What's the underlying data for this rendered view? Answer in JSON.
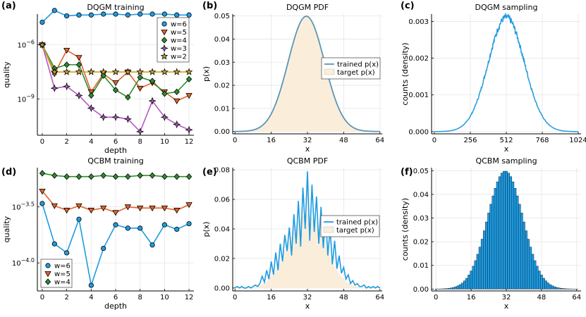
{
  "colors": {
    "w6": "#1f9be0",
    "w5": "#e0622a",
    "w4": "#2f8b2f",
    "w3": "#b45ac2",
    "w2": "#c9a227",
    "target": "#faeedb",
    "trained": "#1f9be0",
    "trainedA": "#5a96b8"
  },
  "chart_data": [
    {
      "id": "a",
      "type": "line",
      "panel_label": "(a)",
      "title": "DQGM training",
      "xlabel": "depth",
      "ylabel": "quality",
      "xlim": [
        -0.4,
        12.4
      ],
      "ylog": true,
      "ylim_exp": [
        -11.0,
        -4.3
      ],
      "x_ticks": [
        0,
        2,
        4,
        6,
        8,
        10,
        12
      ],
      "y_ticks": [
        {
          "exp": -6,
          "label": "10",
          "sup": "−6"
        },
        {
          "exp": -9,
          "label": "10",
          "sup": "−9"
        }
      ],
      "x": [
        0,
        1,
        2,
        3,
        4,
        5,
        6,
        7,
        8,
        9,
        10,
        11,
        12
      ],
      "series": [
        {
          "name": "w=6",
          "marker": "circle",
          "log10": [
            -4.75,
            -4.1,
            -4.4,
            -4.35,
            -4.35,
            -4.3,
            -4.3,
            -4.35,
            -4.3,
            -4.3,
            -4.3,
            -4.35,
            -4.35
          ]
        },
        {
          "name": "w=5",
          "marker": "tri-down",
          "log10": [
            -6.0,
            -7.6,
            -6.3,
            -6.7,
            -8.6,
            -7.6,
            -8.1,
            -7.5,
            -8.4,
            -8.1,
            -8.6,
            -9.1,
            -8.8
          ]
        },
        {
          "name": "w=4",
          "marker": "diamond",
          "log10": [
            -6.0,
            -7.3,
            -7.1,
            -7.1,
            -8.8,
            -7.7,
            -8.5,
            -8.9,
            -7.8,
            -8.0,
            -8.7,
            -8.6,
            -7.9
          ]
        },
        {
          "name": "w=3",
          "marker": "star4",
          "log10": [
            -6.0,
            -8.4,
            -8.3,
            -8.8,
            -9.5,
            -10.0,
            -10.0,
            -10.1,
            -10.8,
            -9.1,
            -10.0,
            -10.4,
            -10.7
          ]
        },
        {
          "name": "w=2",
          "marker": "star5",
          "log10": [
            -6.0,
            -7.5,
            -7.5,
            -7.5,
            -7.5,
            -7.5,
            -7.5,
            -7.5,
            -7.5,
            -7.5,
            -7.5,
            -7.5,
            -7.5
          ]
        }
      ],
      "legend": [
        "w=6",
        "w=5",
        "w=4",
        "w=3",
        "w=2"
      ]
    },
    {
      "id": "b",
      "type": "area",
      "panel_label": "(b)",
      "title": "DQGM PDF",
      "xlabel": "x",
      "ylabel": "p(x)",
      "xlim": [
        -1,
        65
      ],
      "ylim": [
        -0.001,
        0.0508
      ],
      "x_ticks": [
        0,
        16,
        32,
        48,
        64
      ],
      "y_ticks": [
        0.0,
        0.01,
        0.02,
        0.03,
        0.04,
        0.05
      ],
      "y_tick_labels": [
        "0.00",
        "0.01",
        "0.02",
        "0.03",
        "0.04",
        "0.05"
      ],
      "gaussian": {
        "mean": 31.5,
        "sd": 8.0,
        "x_range": [
          0,
          64
        ]
      },
      "legend": [
        "trained p(x)",
        "target p(x)"
      ]
    },
    {
      "id": "c",
      "type": "line",
      "panel_label": "(c)",
      "title": "DQGM sampling",
      "xlabel": "x",
      "ylabel": "counts (density)",
      "xlim": [
        -20,
        1044
      ],
      "ylim": [
        -6e-05,
        0.0032
      ],
      "x_ticks": [
        0,
        256,
        512,
        768,
        1024
      ],
      "y_ticks": [
        0.0,
        0.001,
        0.002,
        0.003
      ],
      "y_tick_labels": [
        "0.000",
        "0.001",
        "0.002",
        "0.003"
      ],
      "gaussian": {
        "mean": 512,
        "sd": 128,
        "x_range": [
          0,
          1024
        ]
      }
    },
    {
      "id": "d",
      "type": "line",
      "panel_label": "(d)",
      "title": "QCBM training",
      "xlabel": "depth",
      "ylabel": "quality",
      "xlim": [
        -0.4,
        12.4
      ],
      "ylog": true,
      "ylim_exp": [
        -4.25,
        -3.15
      ],
      "x_ticks": [
        0,
        2,
        4,
        6,
        8,
        10,
        12
      ],
      "y_ticks": [
        {
          "exp": -3.5,
          "label": "10",
          "sup": "−3.5"
        },
        {
          "exp": -4.0,
          "label": "10",
          "sup": "−4.0"
        }
      ],
      "x": [
        0,
        1,
        2,
        3,
        4,
        5,
        6,
        7,
        8,
        9,
        10,
        11,
        12
      ],
      "series": [
        {
          "name": "w=6",
          "marker": "circle",
          "log10": [
            -3.47,
            -3.83,
            -3.91,
            -3.61,
            -4.2,
            -3.87,
            -3.66,
            -3.69,
            -3.69,
            -3.84,
            -3.66,
            -3.7,
            -3.65
          ]
        },
        {
          "name": "w=5",
          "marker": "tri-down",
          "log10": [
            -3.36,
            -3.49,
            -3.53,
            -3.49,
            -3.53,
            -3.51,
            -3.55,
            -3.5,
            -3.51,
            -3.51,
            -3.51,
            -3.53,
            -3.48
          ]
        },
        {
          "name": "w=4",
          "marker": "diamond",
          "log10": [
            -3.2,
            -3.22,
            -3.23,
            -3.23,
            -3.23,
            -3.22,
            -3.23,
            -3.23,
            -3.22,
            -3.22,
            -3.23,
            -3.23,
            -3.23
          ]
        }
      ],
      "legend": [
        "w=6",
        "w=5",
        "w=4"
      ]
    },
    {
      "id": "e",
      "type": "area",
      "panel_label": "(e)",
      "title": "QCBM PDF",
      "xlabel": "x",
      "ylabel": "p(x)",
      "xlim": [
        -1,
        65
      ],
      "ylim": [
        -0.002,
        0.0815
      ],
      "x_ticks": [
        0,
        16,
        32,
        48,
        64
      ],
      "y_ticks": [
        0.0,
        0.02,
        0.04,
        0.06,
        0.08
      ],
      "y_tick_labels": [
        "0.00",
        "0.02",
        "0.04",
        "0.06",
        "0.08"
      ],
      "gaussian": {
        "mean": 31.5,
        "sd": 8.0,
        "x_range": [
          0,
          64
        ]
      },
      "trained_values": [
        0.0,
        0.001,
        0.0,
        0.001,
        0.0,
        0.0,
        0.001,
        0.0,
        0.001,
        0.002,
        0.001,
        0.003,
        0.008,
        0.004,
        0.012,
        0.006,
        0.018,
        0.009,
        0.024,
        0.012,
        0.03,
        0.018,
        0.036,
        0.025,
        0.041,
        0.022,
        0.05,
        0.03,
        0.059,
        0.028,
        0.068,
        0.04,
        0.079,
        0.032,
        0.07,
        0.038,
        0.062,
        0.03,
        0.055,
        0.027,
        0.049,
        0.022,
        0.04,
        0.016,
        0.032,
        0.013,
        0.022,
        0.01,
        0.014,
        0.006,
        0.009,
        0.003,
        0.005,
        0.002,
        0.003,
        0.001,
        0.001,
        0.002,
        0.0,
        0.001,
        0.0,
        0.001,
        0.0,
        0.001,
        0.0
      ],
      "legend": [
        "trained p(x)",
        "target p(x)"
      ]
    },
    {
      "id": "f",
      "type": "bar",
      "panel_label": "(f)",
      "title": "QCBM sampling",
      "xlabel": "x",
      "ylabel": "counts (density)",
      "xlim": [
        -2,
        66
      ],
      "ylim": [
        -0.0008,
        0.0513
      ],
      "x_ticks": [
        0,
        16,
        32,
        48,
        64
      ],
      "y_ticks": [
        0.0,
        0.01,
        0.02,
        0.03,
        0.04,
        0.05
      ],
      "y_tick_labels": [
        "0.00",
        "0.01",
        "0.02",
        "0.03",
        "0.04",
        "0.05"
      ],
      "gaussian": {
        "mean": 31.5,
        "sd": 8.0,
        "x_range": [
          0,
          64
        ]
      }
    }
  ]
}
